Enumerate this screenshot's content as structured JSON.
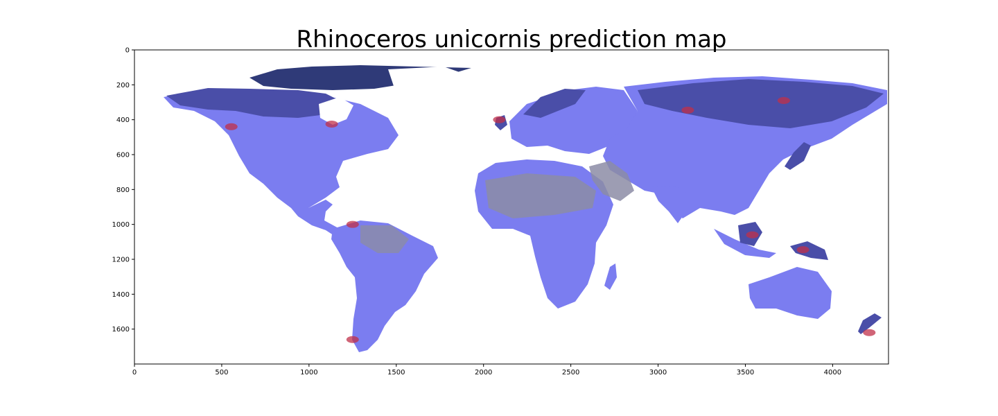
{
  "title": "Rhinoceros unicornis prediction map",
  "colors": {
    "land_base": "#7b7df0",
    "land_dark": "#4a4ea8",
    "land_deep": "#2f3a78",
    "land_grey": "#8c8ca6",
    "hotspot": "#c0304a",
    "axes": "#000000",
    "background": "#ffffff"
  },
  "chart_data": {
    "type": "heatmap",
    "title": "Rhinoceros unicornis prediction map",
    "xlabel": "",
    "ylabel": "",
    "xlim": [
      0,
      4320
    ],
    "ylim": [
      1800,
      0
    ],
    "xticks": [
      0,
      500,
      1000,
      1500,
      2000,
      2500,
      3000,
      3500,
      4000
    ],
    "yticks": [
      0,
      200,
      400,
      600,
      800,
      1000,
      1200,
      1400,
      1600
    ],
    "xtick_labels": [
      "0",
      "500",
      "1000",
      "1500",
      "2000",
      "2500",
      "3000",
      "3500",
      "4000"
    ],
    "ytick_labels": [
      "0",
      "200",
      "400",
      "600",
      "800",
      "1000",
      "1200",
      "1400",
      "1600"
    ],
    "grid": false,
    "legend": "none",
    "hotspots": [
      {
        "x": 3720,
        "y": 290
      },
      {
        "x": 3170,
        "y": 345
      },
      {
        "x": 3540,
        "y": 1060
      },
      {
        "x": 3830,
        "y": 1145
      },
      {
        "x": 1130,
        "y": 425
      },
      {
        "x": 1250,
        "y": 1000
      },
      {
        "x": 1250,
        "y": 1660
      },
      {
        "x": 4210,
        "y": 1620
      },
      {
        "x": 555,
        "y": 440
      },
      {
        "x": 2090,
        "y": 400
      }
    ]
  }
}
